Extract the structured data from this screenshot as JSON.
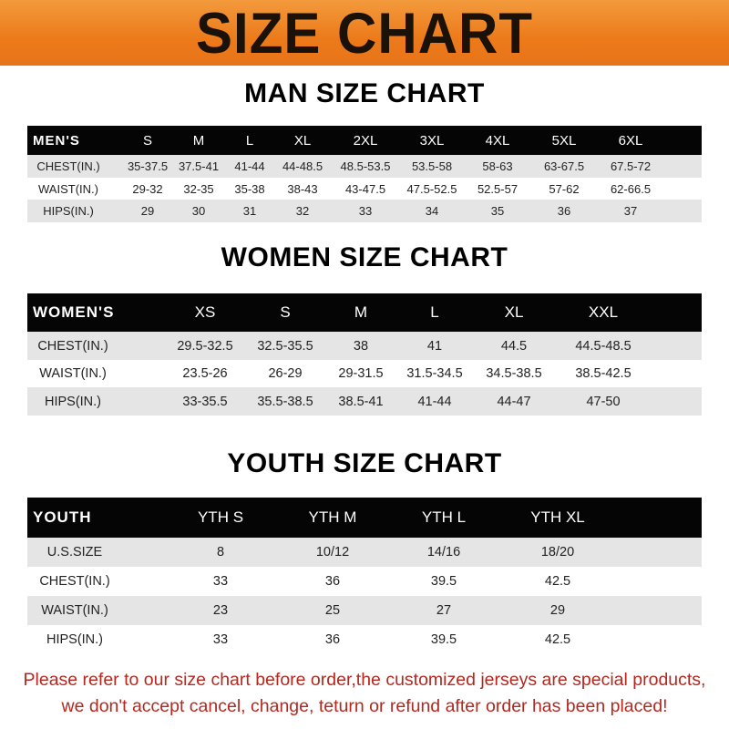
{
  "banner": {
    "title": "SIZE CHART",
    "color": "#ec7a1a"
  },
  "men": {
    "title": "MAN SIZE CHART",
    "header": [
      "MEN'S",
      "S",
      "M",
      "L",
      "XL",
      "2XL",
      "3XL",
      "4XL",
      "5XL",
      "6XL"
    ],
    "rows": [
      [
        "CHEST(IN.)",
        "35-37.5",
        "37.5-41",
        "41-44",
        "44-48.5",
        "48.5-53.5",
        "53.5-58",
        "58-63",
        "63-67.5",
        "67.5-72"
      ],
      [
        "WAIST(IN.)",
        "29-32",
        "32-35",
        "35-38",
        "38-43",
        "43-47.5",
        "47.5-52.5",
        "52.5-57",
        "57-62",
        "62-66.5"
      ],
      [
        "HIPS(IN.)",
        "29",
        "30",
        "31",
        "32",
        "33",
        "34",
        "35",
        "36",
        "37"
      ]
    ]
  },
  "women": {
    "title": "WOMEN SIZE CHART",
    "header": [
      "WOMEN'S",
      "XS",
      "S",
      "M",
      "L",
      "XL",
      "XXL"
    ],
    "rows": [
      [
        "CHEST(IN.)",
        "29.5-32.5",
        "32.5-35.5",
        "38",
        "41",
        "44.5",
        "44.5-48.5"
      ],
      [
        "WAIST(IN.)",
        "23.5-26",
        "26-29",
        "29-31.5",
        "31.5-34.5",
        "34.5-38.5",
        "38.5-42.5"
      ],
      [
        "HIPS(IN.)",
        "33-35.5",
        "35.5-38.5",
        "38.5-41",
        "41-44",
        "44-47",
        "47-50"
      ]
    ]
  },
  "youth": {
    "title": "YOUTH SIZE CHART",
    "header": [
      "YOUTH",
      "YTH S",
      "YTH M",
      "YTH L",
      "YTH XL"
    ],
    "rows": [
      [
        "U.S.SIZE",
        "8",
        "10/12",
        "14/16",
        "18/20"
      ],
      [
        "CHEST(IN.)",
        "33",
        "36",
        "39.5",
        "42.5"
      ],
      [
        "WAIST(IN.)",
        "23",
        "25",
        "27",
        "29"
      ],
      [
        "HIPS(IN.)",
        "33",
        "36",
        "39.5",
        "42.5"
      ]
    ]
  },
  "notice": {
    "line1": "Please refer to our size chart before order,the customized jerseys are special products,",
    "line2": "we don't accept cancel, change, teturn or refund after order has been placed!",
    "color": "#b5281f"
  }
}
